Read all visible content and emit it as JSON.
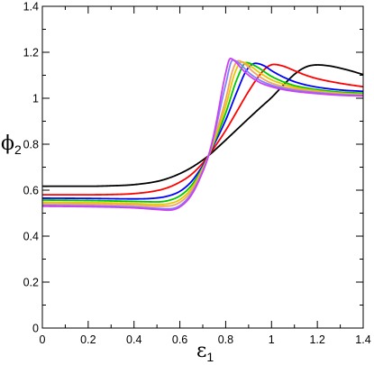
{
  "chart_data": {
    "type": "line",
    "xlabel": {
      "symbol": "ε",
      "subscript": "1"
    },
    "ylabel": {
      "symbol": "ϕ",
      "subscript": "2"
    },
    "xlim": [
      0,
      1.4
    ],
    "ylim": [
      0,
      1.4
    ],
    "xticks": [
      0,
      0.2,
      0.4,
      0.6,
      0.8,
      1.0,
      1.2,
      1.4
    ],
    "xtick_labels": [
      "0",
      "0.2",
      "0.4",
      "0.6",
      "0.8",
      "1",
      "1.2",
      "1.4"
    ],
    "yticks": [
      0,
      0.2,
      0.4,
      0.6,
      0.8,
      1.0,
      1.2,
      1.4
    ],
    "ytick_labels": [
      "0",
      "0.2",
      "0.4",
      "0.6",
      "0.8",
      "1",
      "1.2",
      "1.4"
    ],
    "minor_tick_step": 0.1,
    "grid": false,
    "legend": "none",
    "series": [
      {
        "color": "#000000",
        "points": [
          [
            0,
            0.617
          ],
          [
            0.2,
            0.617
          ],
          [
            0.3,
            0.619
          ],
          [
            0.4,
            0.624
          ],
          [
            0.5,
            0.638
          ],
          [
            0.55,
            0.652
          ],
          [
            0.6,
            0.672
          ],
          [
            0.65,
            0.698
          ],
          [
            0.7,
            0.731
          ],
          [
            0.725,
            0.75
          ],
          [
            0.75,
            0.772
          ],
          [
            0.8,
            0.818
          ],
          [
            0.85,
            0.865
          ],
          [
            0.9,
            0.912
          ],
          [
            0.95,
            0.958
          ],
          [
            1.0,
            1.003
          ],
          [
            1.05,
            1.055
          ],
          [
            1.1,
            1.104
          ],
          [
            1.15,
            1.136
          ],
          [
            1.2,
            1.145
          ],
          [
            1.25,
            1.141
          ],
          [
            1.3,
            1.131
          ],
          [
            1.35,
            1.118
          ],
          [
            1.4,
            1.103
          ]
        ]
      },
      {
        "color": "#FF0000",
        "points": [
          [
            0,
            0.58
          ],
          [
            0.2,
            0.58
          ],
          [
            0.3,
            0.581
          ],
          [
            0.4,
            0.585
          ],
          [
            0.5,
            0.598
          ],
          [
            0.55,
            0.612
          ],
          [
            0.6,
            0.635
          ],
          [
            0.65,
            0.668
          ],
          [
            0.7,
            0.718
          ],
          [
            0.725,
            0.75
          ],
          [
            0.75,
            0.785
          ],
          [
            0.8,
            0.86
          ],
          [
            0.85,
            0.945
          ],
          [
            0.9,
            1.03
          ],
          [
            0.95,
            1.103
          ],
          [
            0.98,
            1.135
          ],
          [
            1.01,
            1.147
          ],
          [
            1.05,
            1.14
          ],
          [
            1.1,
            1.12
          ],
          [
            1.15,
            1.1
          ],
          [
            1.2,
            1.085
          ],
          [
            1.3,
            1.065
          ],
          [
            1.4,
            1.05
          ]
        ]
      },
      {
        "color": "#0000FF",
        "points": [
          [
            0,
            0.565
          ],
          [
            0.2,
            0.564
          ],
          [
            0.4,
            0.562
          ],
          [
            0.5,
            0.566
          ],
          [
            0.55,
            0.575
          ],
          [
            0.6,
            0.595
          ],
          [
            0.65,
            0.637
          ],
          [
            0.7,
            0.707
          ],
          [
            0.725,
            0.75
          ],
          [
            0.75,
            0.8
          ],
          [
            0.8,
            0.905
          ],
          [
            0.85,
            1.03
          ],
          [
            0.89,
            1.12
          ],
          [
            0.93,
            1.152
          ],
          [
            0.97,
            1.14
          ],
          [
            1.0,
            1.12
          ],
          [
            1.05,
            1.093
          ],
          [
            1.1,
            1.072
          ],
          [
            1.15,
            1.058
          ],
          [
            1.2,
            1.048
          ],
          [
            1.3,
            1.036
          ],
          [
            1.4,
            1.03
          ]
        ]
      },
      {
        "color": "#00C800",
        "points": [
          [
            0,
            0.557
          ],
          [
            0.2,
            0.555
          ],
          [
            0.4,
            0.551
          ],
          [
            0.5,
            0.549
          ],
          [
            0.55,
            0.555
          ],
          [
            0.6,
            0.575
          ],
          [
            0.65,
            0.62
          ],
          [
            0.7,
            0.7
          ],
          [
            0.725,
            0.75
          ],
          [
            0.75,
            0.808
          ],
          [
            0.8,
            0.935
          ],
          [
            0.85,
            1.085
          ],
          [
            0.89,
            1.155
          ],
          [
            0.93,
            1.14
          ],
          [
            1.0,
            1.095
          ],
          [
            1.05,
            1.072
          ],
          [
            1.1,
            1.055
          ],
          [
            1.15,
            1.045
          ],
          [
            1.2,
            1.037
          ],
          [
            1.3,
            1.027
          ],
          [
            1.4,
            1.022
          ]
        ]
      },
      {
        "color": "#E6C800",
        "points": [
          [
            0,
            0.548
          ],
          [
            0.2,
            0.546
          ],
          [
            0.4,
            0.542
          ],
          [
            0.5,
            0.538
          ],
          [
            0.55,
            0.541
          ],
          [
            0.6,
            0.559
          ],
          [
            0.65,
            0.607
          ],
          [
            0.7,
            0.695
          ],
          [
            0.725,
            0.75
          ],
          [
            0.75,
            0.815
          ],
          [
            0.8,
            0.965
          ],
          [
            0.84,
            1.11
          ],
          [
            0.87,
            1.158
          ],
          [
            0.9,
            1.145
          ],
          [
            0.95,
            1.11
          ],
          [
            1.0,
            1.08
          ],
          [
            1.05,
            1.062
          ],
          [
            1.1,
            1.048
          ],
          [
            1.2,
            1.032
          ],
          [
            1.3,
            1.022
          ],
          [
            1.4,
            1.017
          ]
        ]
      },
      {
        "color": "#F4A460",
        "points": [
          [
            0,
            0.541
          ],
          [
            0.2,
            0.539
          ],
          [
            0.4,
            0.535
          ],
          [
            0.5,
            0.53
          ],
          [
            0.55,
            0.531
          ],
          [
            0.6,
            0.547
          ],
          [
            0.65,
            0.596
          ],
          [
            0.7,
            0.69
          ],
          [
            0.725,
            0.75
          ],
          [
            0.75,
            0.825
          ],
          [
            0.8,
            0.995
          ],
          [
            0.83,
            1.12
          ],
          [
            0.855,
            1.163
          ],
          [
            0.88,
            1.152
          ],
          [
            0.92,
            1.115
          ],
          [
            0.97,
            1.08
          ],
          [
            1.0,
            1.066
          ],
          [
            1.05,
            1.051
          ],
          [
            1.1,
            1.041
          ],
          [
            1.2,
            1.028
          ],
          [
            1.3,
            1.019
          ],
          [
            1.4,
            1.014
          ]
        ]
      },
      {
        "color": "#8080FF",
        "points": [
          [
            0,
            0.534
          ],
          [
            0.2,
            0.532
          ],
          [
            0.4,
            0.527
          ],
          [
            0.5,
            0.521
          ],
          [
            0.55,
            0.519
          ],
          [
            0.6,
            0.533
          ],
          [
            0.65,
            0.585
          ],
          [
            0.7,
            0.683
          ],
          [
            0.725,
            0.75
          ],
          [
            0.75,
            0.84
          ],
          [
            0.8,
            1.06
          ],
          [
            0.83,
            1.166
          ],
          [
            0.86,
            1.152
          ],
          [
            0.9,
            1.112
          ],
          [
            0.95,
            1.078
          ],
          [
            1.0,
            1.057
          ],
          [
            1.05,
            1.044
          ],
          [
            1.1,
            1.035
          ],
          [
            1.2,
            1.024
          ],
          [
            1.3,
            1.016
          ],
          [
            1.4,
            1.012
          ]
        ]
      },
      {
        "color": "#CC40F0",
        "points": [
          [
            0,
            0.53
          ],
          [
            0.2,
            0.528
          ],
          [
            0.4,
            0.523
          ],
          [
            0.5,
            0.516
          ],
          [
            0.55,
            0.513
          ],
          [
            0.6,
            0.527
          ],
          [
            0.65,
            0.578
          ],
          [
            0.7,
            0.68
          ],
          [
            0.725,
            0.75
          ],
          [
            0.75,
            0.85
          ],
          [
            0.8,
            1.11
          ],
          [
            0.82,
            1.173
          ],
          [
            0.84,
            1.162
          ],
          [
            0.87,
            1.128
          ],
          [
            0.9,
            1.1
          ],
          [
            0.95,
            1.068
          ],
          [
            1.0,
            1.05
          ],
          [
            1.05,
            1.038
          ],
          [
            1.1,
            1.03
          ],
          [
            1.2,
            1.02
          ],
          [
            1.3,
            1.013
          ],
          [
            1.4,
            1.01
          ]
        ]
      }
    ]
  }
}
